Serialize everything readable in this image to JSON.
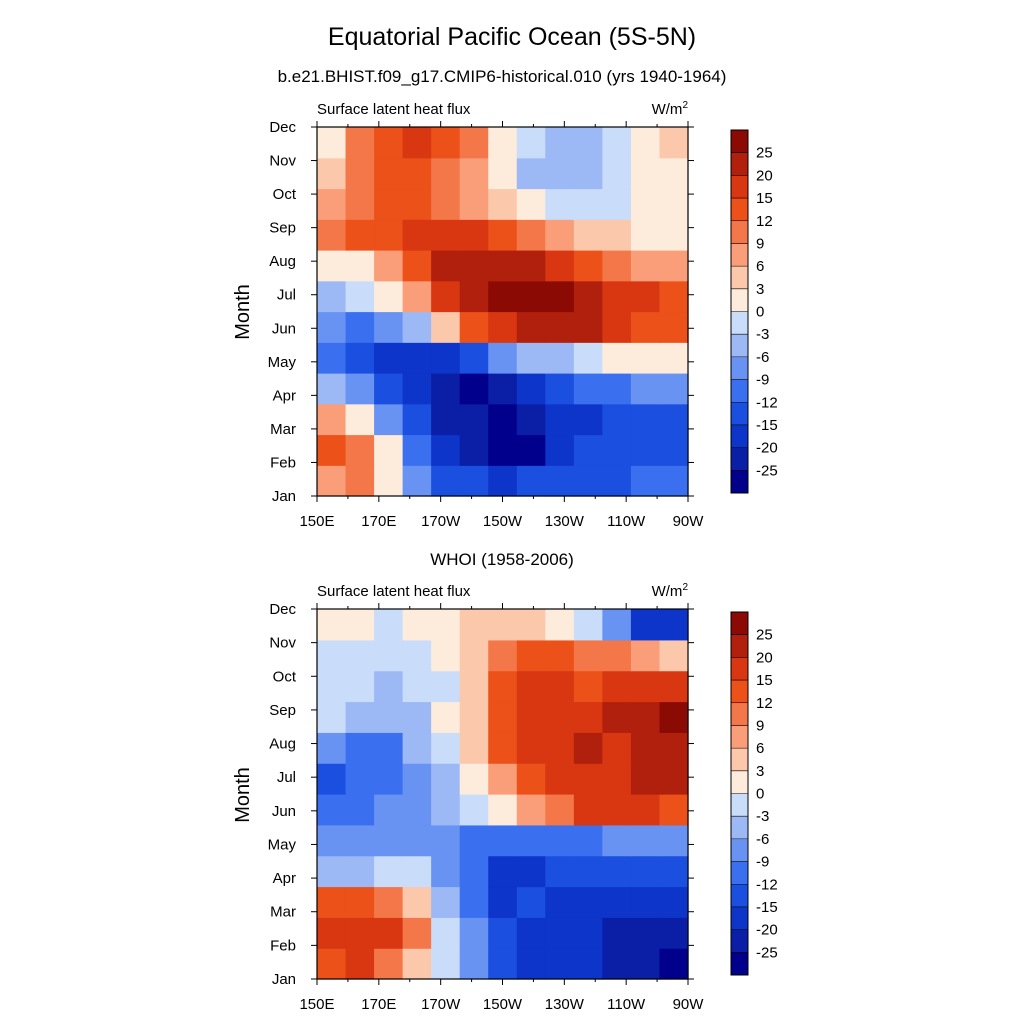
{
  "figure": {
    "title": "Equatorial Pacific Ocean (5S-5N)",
    "palette": [
      "#00008c",
      "#0a1ea6",
      "#0d35c9",
      "#1b4fe0",
      "#3a70f0",
      "#6993f2",
      "#9cb8f5",
      "#c9dcfa",
      "#fdebdc",
      "#fbc8ab",
      "#fa9e79",
      "#f37748",
      "#ec5119",
      "#d93612",
      "#b1200c",
      "#8c0a04"
    ]
  },
  "chart_data": [
    {
      "type": "heatmap",
      "title": "b.e21.BHIST.f09_g17.CMIP6-historical.010 (yrs 1940-1964)",
      "left_label": "Surface latent heat flux",
      "right_label": "W/m",
      "right_label_sup": "2",
      "xlabel": "",
      "ylabel": "Month",
      "x_ticks": [
        "150E",
        "170E",
        "170W",
        "150W",
        "130W",
        "110W",
        "90W"
      ],
      "y_ticks": [
        "Jan",
        "Feb",
        "Mar",
        "Apr",
        "May",
        "Jun",
        "Jul",
        "Aug",
        "Sep",
        "Oct",
        "Nov",
        "Dec"
      ],
      "x": [
        150,
        160,
        170,
        180,
        190,
        200,
        210,
        220,
        230,
        240,
        250,
        260,
        270
      ],
      "y": [
        "Jan",
        "Feb",
        "Mar",
        "Apr",
        "May",
        "Jun",
        "Jul",
        "Aug",
        "Sep",
        "Oct",
        "Nov",
        "Dec"
      ],
      "colorbar_labels": [
        "-25",
        "-20",
        "-15",
        "-12",
        "-9",
        "-6",
        "-3",
        "0",
        "3",
        "6",
        "9",
        "12",
        "15",
        "20",
        "25"
      ],
      "values": [
        [
          6,
          9,
          2,
          -9,
          -14,
          -15,
          -16,
          -14,
          -13,
          -13,
          -13,
          -12,
          -12
        ],
        [
          14,
          10,
          0,
          -12,
          -19,
          -23,
          -26,
          -26,
          -19,
          -14,
          -14,
          -13,
          -13
        ],
        [
          6,
          2,
          -7,
          -15,
          -21,
          -25,
          -26,
          -24,
          -19,
          -16,
          -15,
          -14,
          -14
        ],
        [
          -4,
          -9,
          -14,
          -20,
          -25,
          -26,
          -21,
          -17,
          -15,
          -12,
          -10,
          -9,
          -9
        ],
        [
          -12,
          -15,
          -17,
          -18,
          -17,
          -13,
          -9,
          -6,
          -4,
          -2,
          0,
          0,
          0
        ],
        [
          -9,
          -10,
          -9,
          -4,
          4,
          12,
          19,
          23,
          24,
          22,
          16,
          14,
          13
        ],
        [
          -4,
          -3,
          0,
          6,
          16,
          22,
          25,
          27,
          27,
          24,
          18,
          15,
          13
        ],
        [
          0,
          2,
          7,
          14,
          20,
          22,
          22,
          20,
          17,
          12,
          9,
          7,
          6
        ],
        [
          10,
          12,
          14,
          16,
          17,
          15,
          12,
          10,
          8,
          5,
          3,
          2,
          1
        ],
        [
          8,
          11,
          13,
          12,
          10,
          7,
          3,
          0,
          -2,
          -3,
          -2,
          1,
          2
        ],
        [
          4,
          10,
          12,
          13,
          11,
          7,
          1,
          -4,
          -6,
          -4,
          -2,
          1,
          2
        ],
        [
          2,
          10,
          13,
          16,
          13,
          9,
          2,
          -3,
          -4,
          -4,
          -3,
          1,
          3
        ]
      ]
    },
    {
      "type": "heatmap",
      "title": "WHOI (1958-2006)",
      "left_label": "Surface latent heat flux",
      "right_label": "W/m",
      "right_label_sup": "2",
      "xlabel": "",
      "ylabel": "Month",
      "x_ticks": [
        "150E",
        "170E",
        "170W",
        "150W",
        "130W",
        "110W",
        "90W"
      ],
      "y_ticks": [
        "Jan",
        "Feb",
        "Mar",
        "Apr",
        "May",
        "Jun",
        "Jul",
        "Aug",
        "Sep",
        "Oct",
        "Nov",
        "Dec"
      ],
      "x": [
        150,
        160,
        170,
        180,
        190,
        200,
        210,
        220,
        230,
        240,
        250,
        260,
        270
      ],
      "y": [
        "Jan",
        "Feb",
        "Mar",
        "Apr",
        "May",
        "Jun",
        "Jul",
        "Aug",
        "Sep",
        "Oct",
        "Nov",
        "Dec"
      ],
      "colorbar_labels": [
        "-25",
        "-20",
        "-15",
        "-12",
        "-9",
        "-6",
        "-3",
        "0",
        "3",
        "6",
        "9",
        "12",
        "15",
        "20",
        "25"
      ],
      "values": [
        [
          13,
          15,
          10,
          4,
          -2,
          -8,
          -14,
          -18,
          -17,
          -20,
          -22,
          -22,
          -26
        ],
        [
          15,
          17,
          17,
          9,
          -1,
          -8,
          -15,
          -16,
          -16,
          -20,
          -23,
          -23,
          -21
        ],
        [
          12,
          14,
          9,
          3,
          -5,
          -12,
          -16,
          -15,
          -16,
          -17,
          -18,
          -17,
          -17
        ],
        [
          -5,
          -4,
          -2,
          -3,
          -7,
          -12,
          -16,
          -16,
          -14,
          -15,
          -14,
          -14,
          -13
        ],
        [
          -8,
          -8,
          -9,
          -9,
          -8,
          -10,
          -12,
          -11,
          -10,
          -10,
          -9,
          -8,
          -8
        ],
        [
          -11,
          -10,
          -8,
          -7,
          -6,
          -3,
          0,
          6,
          10,
          15,
          15,
          16,
          14
        ],
        [
          -13,
          -12,
          -11,
          -8,
          -4,
          0,
          6,
          14,
          18,
          17,
          19,
          20,
          20
        ],
        [
          -8,
          -10,
          -11,
          -6,
          -1,
          3,
          12,
          18,
          19,
          21,
          19,
          21,
          20
        ],
        [
          -3,
          -5,
          -6,
          -4,
          0,
          4,
          14,
          18,
          17,
          18,
          22,
          21,
          25
        ],
        [
          -3,
          -2,
          -4,
          -3,
          -1,
          4,
          12,
          16,
          17,
          13,
          15,
          18,
          17
        ],
        [
          -1,
          -1,
          -2,
          -1,
          0,
          3,
          10,
          12,
          12,
          10,
          9,
          8,
          4
        ],
        [
          2,
          1,
          -1,
          0,
          2,
          3,
          3,
          3,
          2,
          -2,
          -9,
          -16,
          -20
        ]
      ]
    }
  ]
}
